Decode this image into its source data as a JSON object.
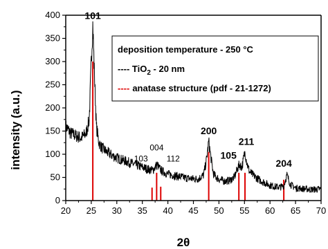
{
  "chart_data": {
    "type": "line",
    "xlabel": "2θ",
    "ylabel": "intensity (a.u.)",
    "xlim": [
      20,
      70
    ],
    "ylim": [
      0,
      400
    ],
    "x_ticks": [
      "20",
      "25",
      "30",
      "35",
      "40",
      "45",
      "50",
      "55",
      "60",
      "65",
      "70"
    ],
    "y_ticks": [
      "0",
      "50",
      "100",
      "150",
      "200",
      "250",
      "300",
      "350",
      "400"
    ],
    "grid": false,
    "legend_position": "top-right",
    "legend": {
      "line1": "deposition temperature - 250 °C",
      "line2_prefix": "---- TiO",
      "line2_sub": "2",
      "line2_suffix": " - 20 nm",
      "line3_dash": "----",
      "line3_text": "anatase structure",
      "line3_paren": "(pdf - 21-1272)"
    },
    "series": [
      {
        "name": "TiO2 - 20 nm",
        "color": "#000000",
        "x": [
          20,
          21,
          22,
          23,
          24,
          24.6,
          25.0,
          25.3,
          25.6,
          26.0,
          26.5,
          27,
          28,
          29,
          30,
          31,
          32,
          33,
          34,
          35,
          36,
          37,
          37.5,
          37.9,
          38.3,
          38.8,
          39.5,
          40,
          41,
          42,
          43,
          44,
          45,
          46,
          47,
          47.6,
          48.0,
          48.4,
          48.9,
          49.5,
          50,
          51,
          52,
          53,
          53.6,
          54.0,
          54.5,
          54.9,
          55.1,
          55.5,
          56,
          57,
          58,
          59,
          60,
          61,
          62,
          62.7,
          63.3,
          64,
          65,
          66,
          67,
          68,
          69,
          70
        ],
        "y": [
          160,
          145,
          140,
          135,
          145,
          175,
          300,
          380,
          280,
          160,
          125,
          115,
          105,
          98,
          92,
          88,
          84,
          80,
          76,
          72,
          68,
          65,
          72,
          78,
          70,
          64,
          60,
          57,
          55,
          52,
          50,
          48,
          47,
          47,
          55,
          90,
          128,
          95,
          58,
          50,
          46,
          42,
          43,
          50,
          68,
          78,
          72,
          95,
          105,
          80,
          62,
          52,
          44,
          38,
          33,
          30,
          29,
          32,
          55,
          35,
          27,
          26,
          25,
          24,
          24,
          25
        ]
      }
    ],
    "reference_lines": {
      "name": "anatase structure (pdf - 21-1272)",
      "color": "#dd0000",
      "x": [
        25.3,
        36.9,
        37.8,
        38.6,
        48.0,
        53.9,
        55.1,
        62.7
      ],
      "y": [
        300,
        28,
        60,
        30,
        105,
        60,
        60,
        45
      ]
    },
    "peak_labels": [
      {
        "label": "101",
        "x": 25.3,
        "y": 380,
        "style": "bold"
      },
      {
        "label": "004",
        "x": 37.8,
        "y": 78,
        "style": "small"
      },
      {
        "label": "103",
        "x": 36.9,
        "y": 78,
        "style": "small"
      },
      {
        "label": "112",
        "x": 38.6,
        "y": 78,
        "style": "small"
      },
      {
        "label": "200",
        "x": 48.0,
        "y": 128,
        "style": "bold"
      },
      {
        "label": "105",
        "x": 53.9,
        "y": 78,
        "style": "bold"
      },
      {
        "label": "211",
        "x": 55.1,
        "y": 105,
        "style": "bold"
      },
      {
        "label": "204",
        "x": 62.7,
        "y": 55,
        "style": "bold"
      }
    ]
  }
}
